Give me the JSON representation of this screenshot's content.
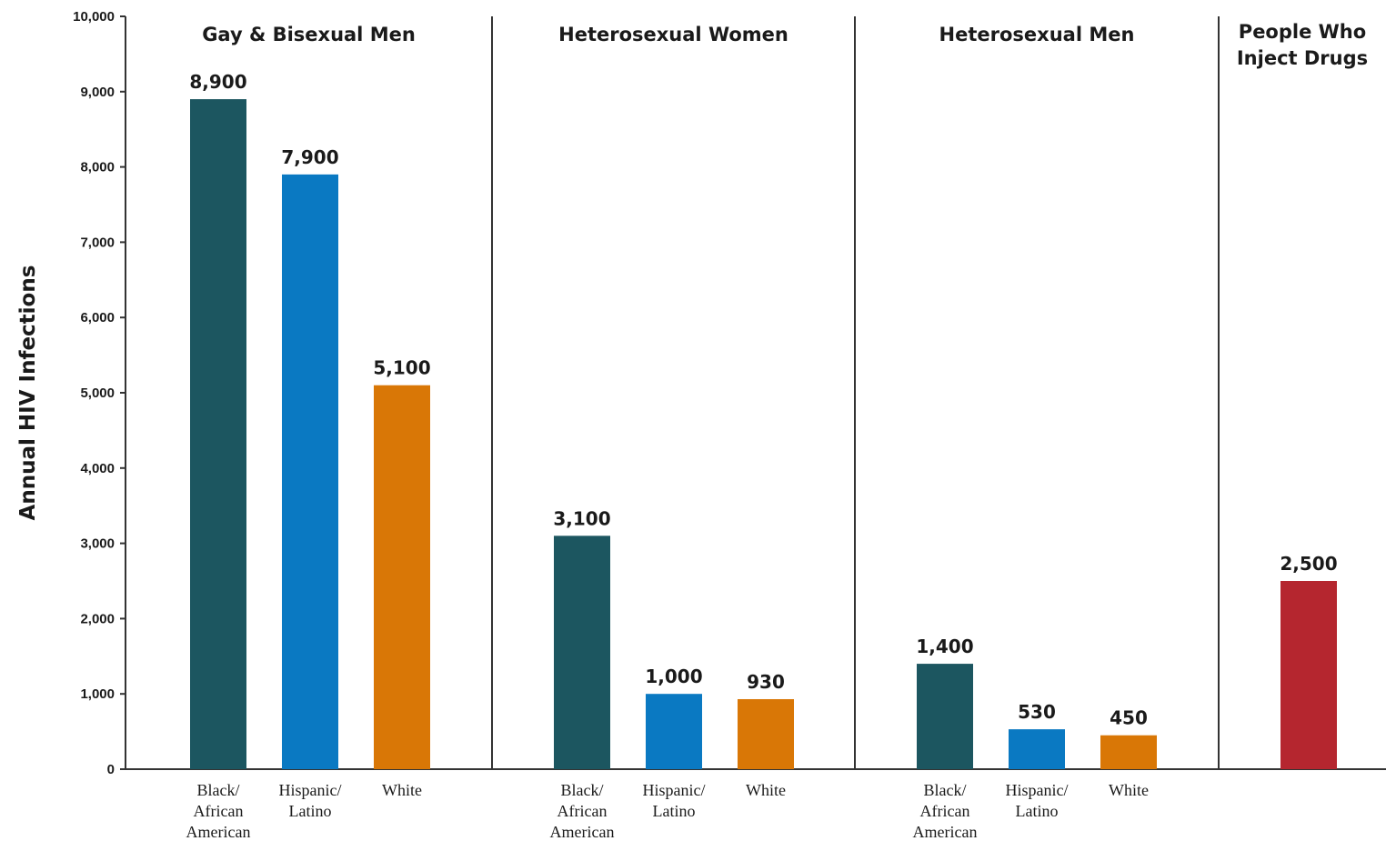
{
  "chart_data": {
    "type": "bar",
    "ylabel": "Annual HIV Infections",
    "ylim": [
      0,
      10000
    ],
    "yticks": [
      "0",
      "1,000",
      "2,000",
      "3,000",
      "4,000",
      "5,000",
      "6,000",
      "7,000",
      "8,000",
      "9,000",
      "10,000"
    ],
    "groups": [
      {
        "title_lines": [
          "Gay & Bisexual Men"
        ],
        "bars": [
          {
            "category_lines": [
              "Black/",
              "African",
              "American"
            ],
            "value": 8900,
            "label": "8,900",
            "color": "#1c5660"
          },
          {
            "category_lines": [
              "Hispanic/",
              "Latino"
            ],
            "value": 7900,
            "label": "7,900",
            "color": "#0a79c2"
          },
          {
            "category_lines": [
              "White"
            ],
            "value": 5100,
            "label": "5,100",
            "color": "#d97706"
          }
        ]
      },
      {
        "title_lines": [
          "Heterosexual Women"
        ],
        "bars": [
          {
            "category_lines": [
              "Black/",
              "African",
              "American"
            ],
            "value": 3100,
            "label": "3,100",
            "color": "#1c5660"
          },
          {
            "category_lines": [
              "Hispanic/",
              "Latino"
            ],
            "value": 1000,
            "label": "1,000",
            "color": "#0a79c2"
          },
          {
            "category_lines": [
              "White"
            ],
            "value": 930,
            "label": "930",
            "color": "#d97706"
          }
        ]
      },
      {
        "title_lines": [
          "Heterosexual Men"
        ],
        "bars": [
          {
            "category_lines": [
              "Black/",
              "African",
              "American"
            ],
            "value": 1400,
            "label": "1,400",
            "color": "#1c5660"
          },
          {
            "category_lines": [
              "Hispanic/",
              "Latino"
            ],
            "value": 530,
            "label": "530",
            "color": "#0a79c2"
          },
          {
            "category_lines": [
              "White"
            ],
            "value": 450,
            "label": "450",
            "color": "#d97706"
          }
        ]
      },
      {
        "title_lines": [
          "People Who",
          "Inject Drugs"
        ],
        "bars": [
          {
            "category_lines": [],
            "value": 2500,
            "label": "2,500",
            "color": "#b5262f"
          }
        ]
      }
    ]
  }
}
